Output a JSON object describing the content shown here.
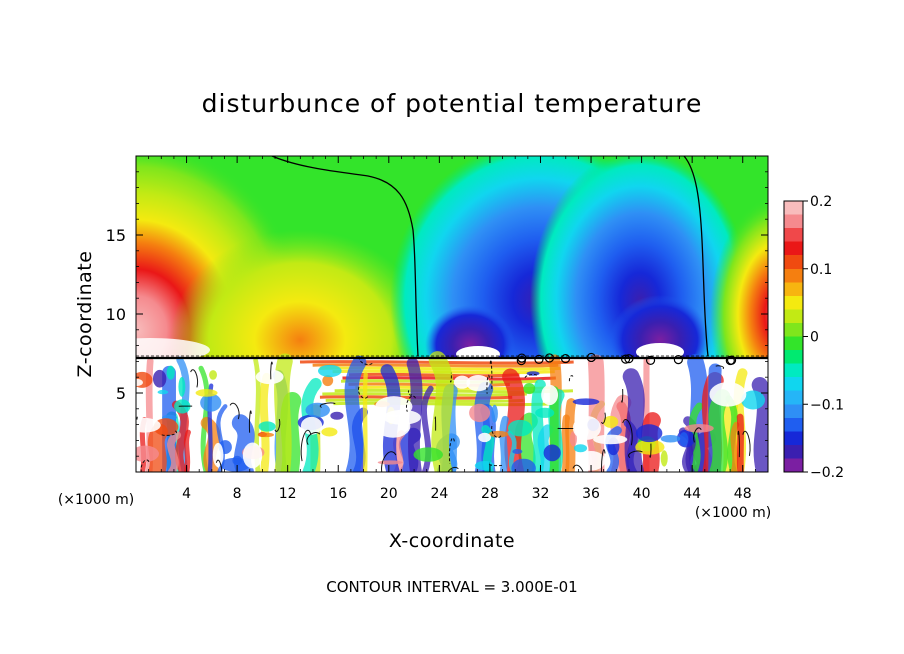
{
  "chart_data": {
    "type": "heatmap",
    "title": "disturbunce of potential temperature",
    "xlabel": "X-coordinate",
    "ylabel": "Z-coordinate",
    "x_unit_label": "(×1000 m)",
    "y_unit_label": "(×1000 m)",
    "footer": "CONTOUR INTERVAL = 3.000E-01",
    "xlim": [
      0,
      50
    ],
    "ylim": [
      0,
      20
    ],
    "x_ticks": [
      4,
      8,
      12,
      16,
      20,
      24,
      28,
      32,
      36,
      40,
      44,
      48
    ],
    "y_ticks": [
      5,
      10,
      15
    ],
    "colorbar": {
      "range": [
        -0.2,
        0.2
      ],
      "tick_values": [
        0.2,
        0.1,
        0,
        -0.1,
        -0.2
      ],
      "tick_labels": [
        "0.2",
        "0.1",
        "0",
        "−0.1",
        "−0.2"
      ],
      "colors": [
        "#7b1fa2",
        "#3a1fb0",
        "#1628d8",
        "#1f5ef0",
        "#2f8ff5",
        "#25b5f7",
        "#10d6ef",
        "#00eac0",
        "#00ea70",
        "#33e42a",
        "#7fe61c",
        "#c2ea14",
        "#f4ea10",
        "#f7b510",
        "#f57f10",
        "#f04a10",
        "#ea1717",
        "#f0484a",
        "#f58a8e",
        "#f8bcbc"
      ]
    },
    "contour_interval": 0.3,
    "grid": false
  }
}
